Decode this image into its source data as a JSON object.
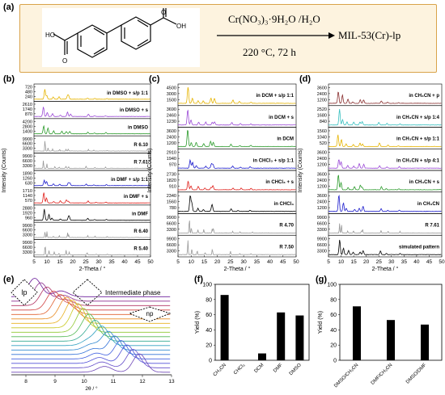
{
  "panel_labels": {
    "a": "(a)",
    "b": "(b)",
    "c": "(c)",
    "d": "(d)",
    "e": "(e)",
    "f": "(f)",
    "g": "(g)"
  },
  "reaction": {
    "reagent": "Cr(NO₃)₃·9H₂O /H₂O",
    "conditions": "220 °C, 72 h",
    "product": "MIL-53(Cr)-lp",
    "ho_left": "HO",
    "o_left": "O",
    "o_right": "O",
    "oh_right": "OH"
  },
  "colors": {
    "frame_fill": "#fdf3df",
    "frame_border": "#d9a34a",
    "black": "#000000",
    "gray": "#999999",
    "red": "#e0201b",
    "blue": "#1b1bcc",
    "green": "#2a9a2a",
    "purple": "#9b4ad6",
    "yellow": "#e6b400",
    "cyan": "#38c0c0",
    "darkred": "#8a3030"
  },
  "chart_data": [
    {
      "id": "b",
      "type": "line",
      "xlabel": "2-Theta / °",
      "ylabel": "Intensity (Counts)",
      "xlim": [
        5,
        50
      ],
      "xticks": [
        5,
        10,
        15,
        20,
        25,
        30,
        35,
        40,
        45,
        50
      ],
      "series": [
        {
          "name": "in DMSO + s/p 1:1",
          "color": "#e6b400",
          "yticks": [
            "240",
            "480",
            "720"
          ]
        },
        {
          "name": "in DMSO + s",
          "color": "#9b4ad6",
          "yticks": [
            "870",
            "1740",
            "2610"
          ]
        },
        {
          "name": "in DMSO",
          "color": "#2a9a2a",
          "yticks": [
            "1400",
            "2800",
            "4200"
          ]
        },
        {
          "name": "R 6.10",
          "color": "#999999",
          "yticks": [
            "3300",
            "6600",
            "9900"
          ]
        },
        {
          "name": "R 7.61",
          "color": "#999999",
          "yticks": [
            "3300",
            "6600",
            "9900"
          ]
        },
        {
          "name": "in DMF + s/p 1:1",
          "color": "#1b1bcc",
          "yticks": [
            "630",
            "1260",
            "1890"
          ]
        },
        {
          "name": "in DMF + s",
          "color": "#e0201b",
          "yticks": [
            "570",
            "1140",
            "1710"
          ]
        },
        {
          "name": "in DMF",
          "color": "#000000",
          "yticks": [
            "960",
            "1920",
            "2880"
          ]
        },
        {
          "name": "R 6.40",
          "color": "#999999",
          "yticks": [
            "3300",
            "6600",
            "9900"
          ]
        },
        {
          "name": "R 5.40",
          "color": "#999999",
          "yticks": [
            "3300",
            "6600",
            "9900"
          ]
        }
      ]
    },
    {
      "id": "c",
      "type": "line",
      "xlabel": "2-Theta / °",
      "ylabel": "Intensity (Counts)",
      "xlim": [
        5,
        50
      ],
      "xticks": [
        5,
        10,
        15,
        20,
        25,
        30,
        35,
        40,
        45,
        50
      ],
      "series": [
        {
          "name": "in DCM + s/p 1:1",
          "color": "#e6b400",
          "yticks": [
            "1500",
            "3000",
            "4500"
          ]
        },
        {
          "name": "in DCM + s",
          "color": "#9b4ad6",
          "yticks": [
            "1230",
            "2460",
            "3690"
          ]
        },
        {
          "name": "in DCM",
          "color": "#2a9a2a",
          "yticks": [
            "1200",
            "2400",
            "3600"
          ]
        },
        {
          "name": "in CHCl₃ + s/p 1:1",
          "color": "#1b1bcc",
          "yticks": [
            "970",
            "1940",
            "2910"
          ]
        },
        {
          "name": "in CHCl₃ + s",
          "color": "#e0201b",
          "yticks": [
            "910",
            "1820",
            "2730"
          ]
        },
        {
          "name": "in CHCl₃",
          "color": "#000000",
          "yticks": [
            "780",
            "1560",
            "2340"
          ]
        },
        {
          "name": "R 4.70",
          "color": "#999999",
          "yticks": [
            "3300",
            "6600",
            "9900"
          ]
        },
        {
          "name": "R 7.50",
          "color": "#999999",
          "yticks": [
            "3300",
            "6600",
            "9900"
          ]
        }
      ]
    },
    {
      "id": "d",
      "type": "line",
      "xlabel": "2-Theta / °",
      "ylabel": "Intensity (Counts)",
      "xlim": [
        5,
        50
      ],
      "xticks": [
        5,
        10,
        15,
        20,
        25,
        30,
        35,
        40,
        45,
        50
      ],
      "series": [
        {
          "name": "in CH₃CN + p",
          "color": "#8a3030",
          "yticks": [
            "1200",
            "2400",
            "3600"
          ]
        },
        {
          "name": "in CH₃CN + s/p 1:4",
          "color": "#38c0c0",
          "yticks": [
            "840",
            "1680",
            "2520"
          ]
        },
        {
          "name": "in CH₃CN + s/p 1:1",
          "color": "#e6b400",
          "yticks": [
            "520",
            "1040",
            "1560"
          ]
        },
        {
          "name": "in CH₃CN + s/p 4:1",
          "color": "#9b4ad6",
          "yticks": [
            "1200",
            "2400",
            "3600"
          ]
        },
        {
          "name": "in CH₃CN + s",
          "color": "#2a9a2a",
          "yticks": [
            "1200",
            "2400",
            "3600"
          ]
        },
        {
          "name": "in CH₃CN",
          "color": "#1b1bcc",
          "yticks": [
            "1200",
            "2400",
            "3600"
          ]
        },
        {
          "name": "R 7.61",
          "color": "#999999",
          "yticks": [
            "3300",
            "6600",
            "9900"
          ]
        },
        {
          "name": "simulated pattern",
          "color": "#000000",
          "yticks": [
            "3300",
            "6600",
            "9900"
          ]
        }
      ]
    },
    {
      "id": "e",
      "type": "line",
      "xlabel": "2θ / °",
      "xlim": [
        7.5,
        13
      ],
      "xticks": [
        8,
        9,
        10,
        11,
        12,
        13
      ],
      "annotations": [
        "lp",
        "Intermediate phase",
        "np"
      ]
    },
    {
      "id": "f",
      "type": "bar",
      "ylabel": "Yield (%)",
      "ylim": [
        0,
        100
      ],
      "yticks": [
        0,
        20,
        40,
        60,
        80,
        100
      ],
      "categories": [
        "CH₃CN",
        "CHCl₃",
        "DCM",
        "DMF",
        "DMSO"
      ],
      "values": [
        86,
        0,
        9,
        63,
        59
      ]
    },
    {
      "id": "g",
      "type": "bar",
      "ylabel": "Yield (%)",
      "ylim": [
        0,
        100
      ],
      "yticks": [
        0,
        20,
        40,
        60,
        80,
        100
      ],
      "categories": [
        "DMSO/CH₃CN",
        "DMF/CH₃CN",
        "DMSO/DMF"
      ],
      "values": [
        71,
        53,
        47
      ]
    }
  ]
}
